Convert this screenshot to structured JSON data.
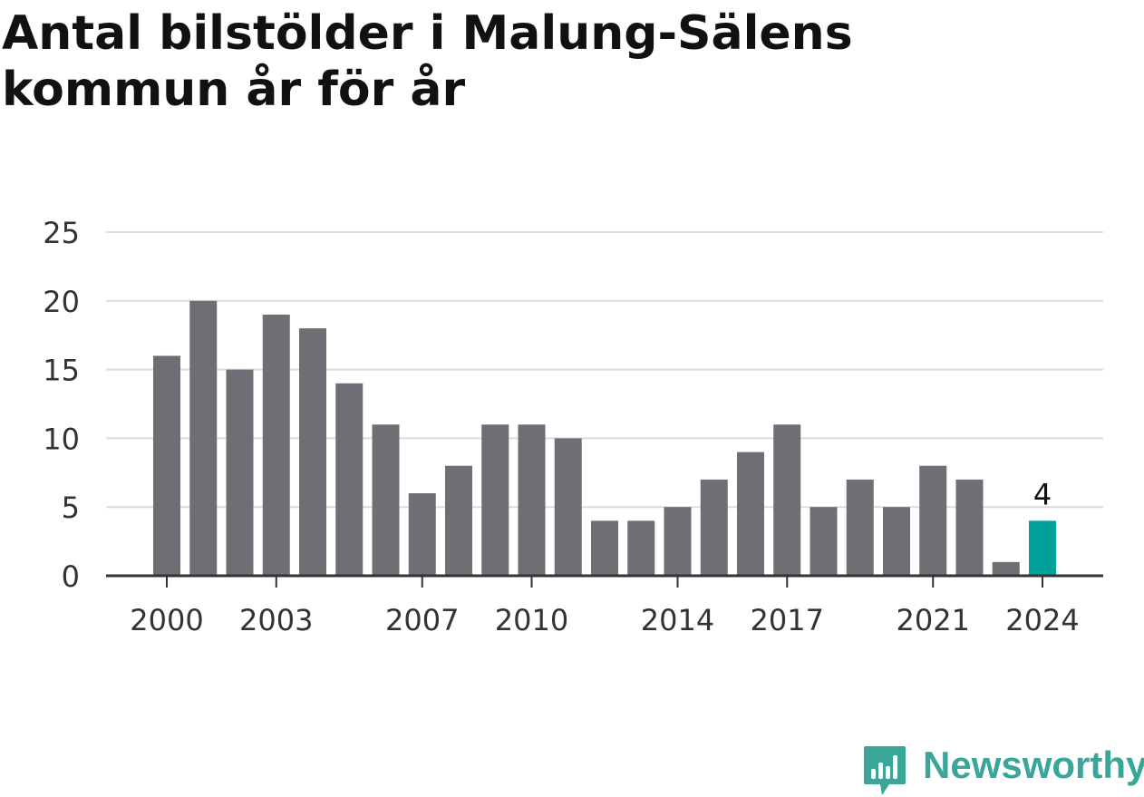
{
  "title": "Antal bilstölder i Malung-Sälens kommun år för år",
  "chart_data": {
    "type": "bar",
    "title": "Antal bilstölder i Malung-Sälens kommun år för år",
    "xlabel": "",
    "ylabel": "",
    "categories": [
      "2000",
      "2001",
      "2002",
      "2003",
      "2004",
      "2005",
      "2006",
      "2007",
      "2008",
      "2009",
      "2010",
      "2011",
      "2012",
      "2013",
      "2014",
      "2015",
      "2016",
      "2017",
      "2018",
      "2019",
      "2020",
      "2021",
      "2022",
      "2023",
      "2024"
    ],
    "values": [
      16,
      20,
      15,
      19,
      18,
      14,
      11,
      6,
      8,
      11,
      11,
      10,
      4,
      4,
      5,
      7,
      9,
      11,
      5,
      7,
      5,
      8,
      7,
      1,
      4
    ],
    "x_tick_labels": [
      "2000",
      "2003",
      "2007",
      "2010",
      "2014",
      "2017",
      "2021",
      "2024"
    ],
    "y_tick_labels": [
      "0",
      "5",
      "10",
      "15",
      "20",
      "25"
    ],
    "ylim": [
      0,
      25
    ],
    "grid": true,
    "highlight": {
      "category": "2024",
      "label": "4"
    },
    "colors": {
      "bar": "#6f6e74",
      "highlight": "#00a19a",
      "grid": "#dcdcdc",
      "axis": "#333333"
    }
  },
  "footer": {
    "brand": "Newsworthy",
    "brand_color": "#3aa699",
    "logo_icon": "newsworthy-chart-bubble-icon"
  }
}
